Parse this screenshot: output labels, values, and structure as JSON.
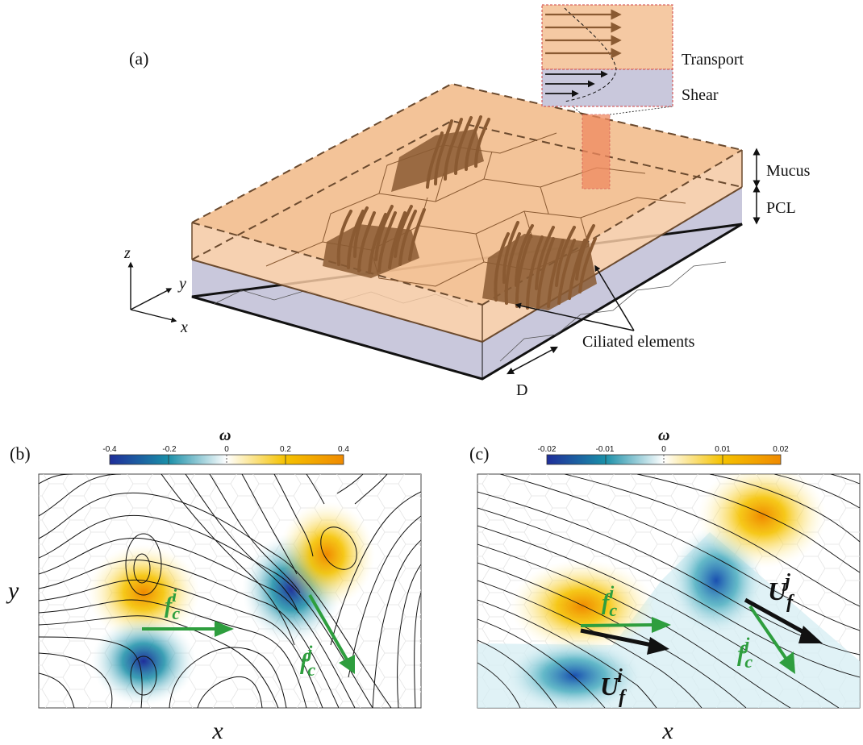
{
  "panel_a": {
    "label": "(a)",
    "zoom_labels": {
      "transport": "Transport",
      "shear": "Shear"
    },
    "layer_labels": {
      "mucus": "Mucus",
      "pcl": "PCL"
    },
    "annotation": "Ciliated elements",
    "dimension": "D",
    "axes": {
      "x": "x",
      "y": "y",
      "z": "z"
    }
  },
  "panel_b": {
    "label": "(b)",
    "colorbar": {
      "symbol": "ω",
      "ticks": [
        "-0.4",
        "-0.2",
        "0",
        "0.2",
        "0.4"
      ]
    },
    "xlabel": "x",
    "ylabel": "y",
    "forces": [
      {
        "base": "f",
        "sub": "c",
        "sup": "i"
      },
      {
        "base": "f",
        "sub": "c",
        "sup": "j"
      }
    ]
  },
  "panel_c": {
    "label": "(c)",
    "colorbar": {
      "symbol": "ω",
      "ticks": [
        "-0.02",
        "-0.01",
        "0",
        "0.01",
        "0.02"
      ]
    },
    "xlabel": "x",
    "forces": [
      {
        "base": "f",
        "sub": "c",
        "sup": "i"
      },
      {
        "base": "f",
        "sub": "c",
        "sup": "j"
      }
    ],
    "velocities": [
      {
        "base": "U",
        "sub": "f",
        "sup": "i"
      },
      {
        "base": "U",
        "sub": "f",
        "sup": "j"
      }
    ]
  },
  "colors": {
    "mucus": "#f5c9a3",
    "pcl": "#c9c8dc",
    "cilia": "#8a5a32",
    "force_arrow": "#2e9e3e",
    "velocity_arrow": "#000000",
    "cmap_neg": "#1f3ea6",
    "cmap_mid": "#ffffff",
    "cmap_pos": "#f28a00"
  }
}
